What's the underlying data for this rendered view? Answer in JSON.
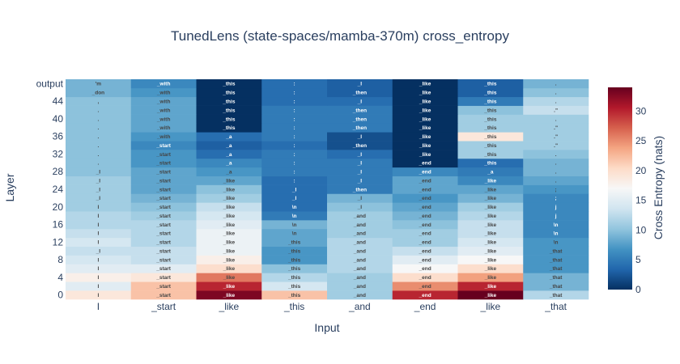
{
  "chart_data": {
    "type": "heatmap",
    "title": "TunedLens (state-spaces/mamba-370m) cross_entropy",
    "xlabel": "Input",
    "ylabel": "Layer",
    "colorbar_title": "Cross Entropy (nats)",
    "colorscale": "RdBu (reversed)",
    "zmin": 0,
    "zmax": 34,
    "colorbar_ticks": [
      0,
      5,
      10,
      15,
      20,
      25,
      30
    ],
    "x_tokens": [
      "I",
      "_start",
      "_like",
      "_this",
      "_and",
      "_end",
      "_like",
      "_that"
    ],
    "y_rows": [
      "0",
      "2",
      "4",
      "6",
      "8",
      "10",
      "12",
      "14",
      "16",
      "18",
      "20",
      "22",
      "24",
      "26",
      "28",
      "30",
      "32",
      "34",
      "36",
      "38",
      "40",
      "42",
      "44",
      "46",
      "output"
    ],
    "y_tick_labels": [
      "0",
      "4",
      "8",
      "12",
      "16",
      "20",
      "24",
      "28",
      "32",
      "36",
      "40",
      "44",
      "output"
    ],
    "cells": [
      {
        "layer": "0",
        "z": [
          19,
          22,
          33,
          22,
          11,
          30,
          34,
          12
        ],
        "top": [
          "I",
          "_start",
          "_like",
          "_this",
          "_and",
          "_end",
          "_like",
          "_that"
        ]
      },
      {
        "layer": "2",
        "z": [
          15,
          22,
          30,
          14,
          11,
          25,
          30,
          9
        ],
        "top": [
          "I",
          "_start",
          "_like",
          "_this",
          "_and",
          "_end",
          "_like",
          "_that"
        ]
      },
      {
        "layer": "4",
        "z": [
          18,
          19,
          26,
          12,
          11,
          20,
          24,
          9
        ],
        "top": [
          "I",
          "_start",
          "_like",
          "_this",
          "_and",
          "_end",
          "_like",
          "_that"
        ]
      },
      {
        "layer": "6",
        "z": [
          15,
          15,
          20,
          10,
          12,
          17,
          20,
          7
        ],
        "top": [
          "I",
          "_start",
          "_like",
          "_this",
          "_and",
          "_end",
          "_like",
          "_that"
        ]
      },
      {
        "layer": "8",
        "z": [
          14,
          13,
          18,
          7,
          12,
          15,
          17,
          7
        ],
        "top": [
          "I",
          "_start",
          "_like",
          "_this",
          "_and",
          "_end",
          "_like",
          "_that"
        ]
      },
      {
        "layer": "10",
        "z": [
          13,
          13,
          16,
          7,
          12,
          13,
          15,
          7
        ],
        "top": [
          "_I",
          "_start",
          "_like",
          "_this",
          "_and",
          "_end",
          "_like",
          "_that"
        ]
      },
      {
        "layer": "12",
        "z": [
          14,
          12,
          16,
          8,
          12,
          11,
          14,
          7
        ],
        "top": [
          "I",
          "_start",
          "_like",
          "_this",
          "_and",
          "_end",
          "_like",
          "\\n"
        ]
      },
      {
        "layer": "14",
        "z": [
          13,
          12,
          16,
          8,
          11,
          11,
          13,
          6
        ],
        "top": [
          "I",
          "_start",
          "_like",
          "\\n",
          "_and",
          "_end",
          "_like",
          "\\n"
        ]
      },
      {
        "layer": "16",
        "z": [
          12,
          12,
          15,
          9,
          11,
          10,
          13,
          6
        ],
        "top": [
          "I",
          "_start",
          "_like",
          "\\n",
          "_and",
          "_end",
          "_like",
          "\\n"
        ]
      },
      {
        "layer": "18",
        "z": [
          12,
          11,
          14,
          5,
          11,
          9,
          12,
          6
        ],
        "top": [
          "I",
          "_start",
          "_like",
          "\\n",
          "_and",
          "_end",
          "_like",
          "j"
        ]
      },
      {
        "layer": "20",
        "z": [
          11,
          10,
          13,
          4,
          10,
          8,
          11,
          6
        ],
        "top": [
          "I",
          "_start",
          "_like",
          "\\n",
          "_I",
          "_end",
          "_like",
          "j"
        ]
      },
      {
        "layer": "22",
        "z": [
          11,
          9,
          11,
          4,
          9,
          7,
          9,
          6
        ],
        "top": [
          "_I",
          "_start",
          "_like",
          "_I",
          "_I",
          "_end",
          "_like",
          ";"
        ]
      },
      {
        "layer": "24",
        "z": [
          11,
          8,
          10,
          4,
          5,
          8,
          8,
          7
        ],
        "top": [
          "_I",
          "_start",
          "_like",
          "_I",
          "_then",
          "_end",
          "_like",
          ";"
        ]
      },
      {
        "layer": "26",
        "z": [
          11,
          8,
          8,
          4,
          5,
          8,
          6,
          8
        ],
        "top": [
          "_I",
          "_start",
          "_like",
          ":",
          "_I",
          "_end",
          "_like",
          "."
        ]
      },
      {
        "layer": "28",
        "z": [
          10,
          8,
          7,
          5,
          5,
          6,
          5,
          9
        ],
        "top": [
          "_I",
          "_start",
          "_a",
          ":",
          "_I",
          "_end",
          "_a",
          "."
        ]
      },
      {
        "layer": "30",
        "z": [
          10,
          7,
          6,
          5,
          5,
          0,
          4,
          9
        ],
        "top": [
          ".",
          "_start",
          "_a",
          ":",
          "_I",
          "_end",
          "_this",
          "."
        ]
      },
      {
        "layer": "32",
        "z": [
          10,
          7,
          4,
          5,
          4,
          0,
          11,
          10
        ],
        "top": [
          ".",
          "_start",
          "_a",
          ":",
          "_I",
          "_like",
          "_this",
          "."
        ]
      },
      {
        "layer": "34",
        "z": [
          10,
          6,
          3,
          4,
          2,
          0,
          11,
          11
        ],
        "top": [
          ".",
          "_start",
          "_a",
          ":",
          "_then",
          "_like",
          "_this",
          ".\""
        ]
      },
      {
        "layer": "36",
        "z": [
          10,
          7,
          4,
          5,
          2,
          0,
          19,
          11
        ],
        "top": [
          ".",
          "_with",
          "_a",
          ":",
          "_I",
          "_like",
          "_this",
          ".\""
        ]
      },
      {
        "layer": "38",
        "z": [
          10,
          8,
          0,
          5,
          5,
          0,
          11,
          11
        ],
        "top": [
          ".",
          "_with",
          "_this",
          ":",
          "_then",
          "_like",
          "_this",
          ".\""
        ]
      },
      {
        "layer": "40",
        "z": [
          10,
          8,
          0,
          5,
          5,
          0,
          11,
          11
        ],
        "top": [
          ".",
          "_with",
          "_this",
          ":",
          "_then",
          "_like",
          "_this",
          "."
        ]
      },
      {
        "layer": "42",
        "z": [
          10,
          8,
          0,
          5,
          5,
          0,
          10,
          13
        ],
        "top": [
          ".",
          "_with",
          "_this",
          ":",
          "_then",
          "_like",
          "_this",
          ".\""
        ]
      },
      {
        "layer": "44",
        "z": [
          10,
          8,
          0,
          4,
          4,
          0,
          5,
          12
        ],
        "top": [
          ",",
          "_with",
          "_this",
          ":",
          "_I",
          "_like",
          "_this",
          "."
        ]
      },
      {
        "layer": "46",
        "z": [
          9,
          7,
          0,
          4,
          3,
          0,
          3,
          10
        ],
        "top": [
          "_don",
          "_with",
          "_this",
          ":",
          "_then",
          "_like",
          "_this",
          "."
        ]
      },
      {
        "layer": "output",
        "z": [
          9,
          6,
          0,
          4,
          3,
          0,
          3,
          9
        ],
        "top": [
          "'m",
          "_with",
          "_this",
          ":",
          "_I",
          "_like",
          "_this",
          "."
        ]
      }
    ]
  }
}
